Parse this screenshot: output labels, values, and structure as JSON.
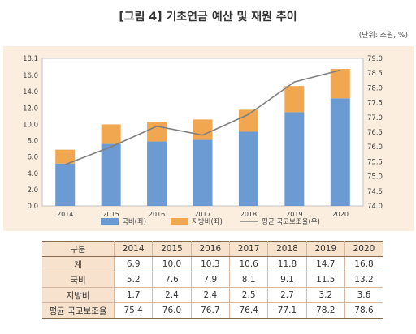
{
  "title": "[그림 4] 기초연금 예산 및 재원 추이",
  "unit": "(단위: 조원, %)",
  "chart_data": {
    "type": "bar",
    "categories": [
      "2014",
      "2015",
      "2016",
      "2017",
      "2018",
      "2019",
      "2020"
    ],
    "series": [
      {
        "name": "국비(좌)",
        "type": "bar",
        "axis": "left",
        "color": "#6b9bd2",
        "values": [
          5.2,
          7.6,
          7.9,
          8.1,
          9.1,
          11.5,
          13.2
        ]
      },
      {
        "name": "지방비(좌)",
        "type": "bar",
        "axis": "left",
        "color": "#f1a650",
        "values": [
          1.7,
          2.4,
          2.4,
          2.5,
          2.7,
          3.2,
          3.6
        ]
      },
      {
        "name": "평균 국고보조율(우)",
        "type": "line",
        "axis": "right",
        "color": "#808080",
        "values": [
          75.4,
          76.0,
          76.7,
          76.4,
          77.1,
          78.2,
          78.6
        ]
      }
    ],
    "stacked": true,
    "left_axis": {
      "min": 0,
      "max": 18.1,
      "ticks": [
        "0.0",
        "2.0",
        "4.0",
        "6.0",
        "8.0",
        "10.0",
        "12.0",
        "14.0",
        "16.0",
        "18.1"
      ],
      "tick_values": [
        0,
        2,
        4,
        6,
        8,
        10,
        12,
        14,
        16,
        18.1
      ]
    },
    "right_axis": {
      "min": 74.0,
      "max": 79.0,
      "ticks": [
        "74.0",
        "74.5",
        "75.0",
        "75.5",
        "76.0",
        "76.5",
        "77.0",
        "77.5",
        "78.0",
        "78.5",
        "79.0"
      ]
    },
    "legend_position": "bottom",
    "grid": false
  },
  "table": {
    "headers": [
      "구분",
      "2014",
      "2015",
      "2016",
      "2017",
      "2018",
      "2019",
      "2020"
    ],
    "rows": [
      [
        "계",
        "6.9",
        "10.0",
        "10.3",
        "10.6",
        "11.8",
        "14.7",
        "16.8"
      ],
      [
        "국비",
        "5.2",
        "7.6",
        "7.9",
        "8.1",
        "9.1",
        "11.5",
        "13.2"
      ],
      [
        "지방비",
        "1.7",
        "2.4",
        "2.4",
        "2.5",
        "2.7",
        "3.2",
        "3.6"
      ],
      [
        "평균 국고보조율",
        "75.4",
        "76.0",
        "76.7",
        "76.4",
        "77.1",
        "78.2",
        "78.6"
      ]
    ]
  }
}
